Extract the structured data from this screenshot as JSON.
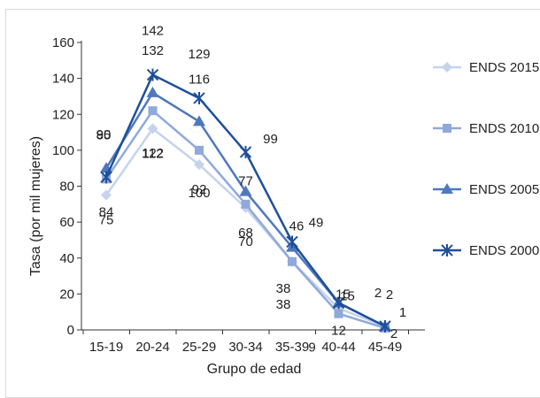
{
  "chart_data": {
    "type": "line",
    "title": "",
    "xlabel": "Grupo de edad",
    "ylabel": "Tasa (por mil mujeres)",
    "categories": [
      "15-19",
      "20-24",
      "25-29",
      "30-34",
      "35-39",
      "40-44",
      "45-49"
    ],
    "ylim": [
      0,
      160
    ],
    "yticks": [
      "0",
      "20",
      "40",
      "60",
      "80",
      "100",
      "120",
      "140",
      "160"
    ],
    "grid": false,
    "legend_position": "right",
    "series": [
      {
        "name": "ENDS 2015",
        "marker": "diamond",
        "color": "#c5d3ec",
        "values": [
          75,
          112,
          92,
          68,
          38,
          12,
          2
        ],
        "labels": [
          "75",
          "112",
          "92",
          "68",
          "38",
          "12",
          "2"
        ]
      },
      {
        "name": "ENDS 2010",
        "marker": "square",
        "color": "#8fa9da",
        "values": [
          84,
          122,
          100,
          70,
          38,
          9,
          1
        ],
        "labels": [
          "84",
          "122",
          "100",
          "70",
          "38",
          "9",
          "1"
        ]
      },
      {
        "name": "ENDS 2005",
        "marker": "triangle",
        "color": "#4f78bd",
        "values": [
          90,
          132,
          116,
          77,
          46,
          15,
          2
        ],
        "labels": [
          "90",
          "132",
          "116",
          "77",
          "46",
          "15",
          "2"
        ]
      },
      {
        "name": "ENDS 2000",
        "marker": "x",
        "color": "#1f4f9a",
        "values": [
          85,
          142,
          129,
          99,
          49,
          15,
          2
        ],
        "labels": [
          "85",
          "142",
          "129",
          "99",
          "49",
          "15",
          "2"
        ]
      }
    ]
  }
}
